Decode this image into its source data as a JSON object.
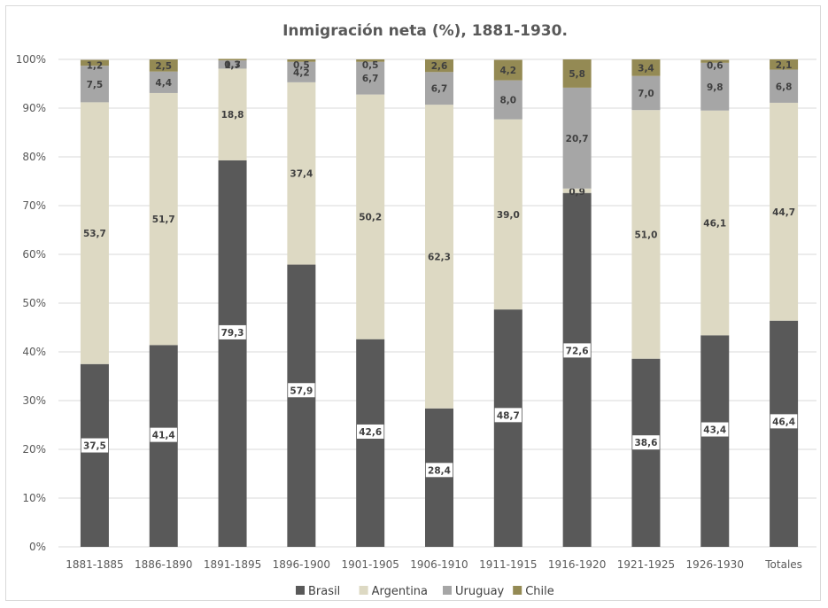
{
  "chart_data": {
    "type": "bar",
    "stacked": true,
    "title": "Inmigración neta (%), 1881-1930.",
    "xlabel": "",
    "ylabel": "",
    "ylim": [
      0,
      100
    ],
    "y_ticks": [
      "0%",
      "10%",
      "20%",
      "30%",
      "40%",
      "50%",
      "60%",
      "70%",
      "80%",
      "90%",
      "100%"
    ],
    "grid": true,
    "legend_position": "bottom",
    "categories": [
      "1881-1885",
      "1886-1890",
      "1891-1895",
      "1896-1900",
      "1901-1905",
      "1906-1910",
      "1911-1915",
      "1916-1920",
      "1921-1925",
      "1926-1930",
      "Totales"
    ],
    "series": [
      {
        "name": "Brasil",
        "color": "#595959",
        "values": [
          37.5,
          41.4,
          79.3,
          57.9,
          42.6,
          28.4,
          48.7,
          72.6,
          38.6,
          43.4,
          46.4
        ],
        "labels": [
          "37,5",
          "41,4",
          "79,3",
          "57,9",
          "42,6",
          "28,4",
          "48,7",
          "72,6",
          "38,6",
          "43,4",
          "46,4"
        ]
      },
      {
        "name": "Argentina",
        "color": "#ddd9c3",
        "values": [
          53.7,
          51.7,
          18.8,
          37.4,
          50.2,
          62.3,
          39.0,
          0.9,
          51.0,
          46.1,
          44.7
        ],
        "labels": [
          "53,7",
          "51,7",
          "18,8",
          "37,4",
          "50,2",
          "62,3",
          "39,0",
          "0,9",
          "51,0",
          "46,1",
          "44,7"
        ]
      },
      {
        "name": "Uruguay",
        "color": "#a6a6a6",
        "values": [
          7.5,
          4.4,
          1.7,
          4.2,
          6.7,
          6.7,
          8.0,
          20.7,
          7.0,
          9.8,
          6.8
        ],
        "labels": [
          "7,5",
          "4,4",
          "1,7",
          "4,2",
          "6,7",
          "6,7",
          "8,0",
          "20,7",
          "7,0",
          "9,8",
          "6,8"
        ]
      },
      {
        "name": "Chile",
        "color": "#948a54",
        "values": [
          1.2,
          2.5,
          0.3,
          0.5,
          0.5,
          2.6,
          4.2,
          5.8,
          3.4,
          0.6,
          2.1
        ],
        "labels": [
          "1,2",
          "2,5",
          "0,3",
          "0,5",
          "0,5",
          "2,6",
          "4,2",
          "5,8",
          "3,4",
          "0,6",
          "2,1"
        ]
      }
    ]
  }
}
